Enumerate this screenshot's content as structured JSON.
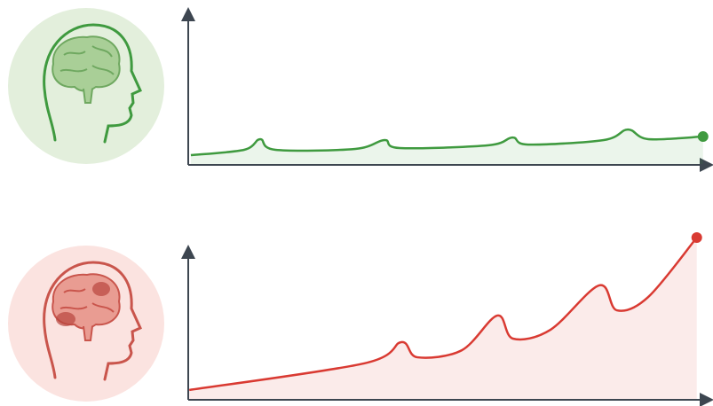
{
  "chart_data": [
    {
      "type": "line",
      "x": [
        0.5,
        10.7,
        13.8,
        16.7,
        32,
        37.6,
        40.5,
        57.5,
        62.1,
        65.1,
        79.6,
        84.2,
        88.1,
        98.6
      ],
      "series": [
        {
          "color": "#3f9a3f",
          "values": [
            5.9,
            9.4,
            16.5,
            9.4,
            10,
            15.9,
            10.6,
            12.4,
            17.6,
            12.9,
            15.9,
            22.9,
            16.5,
            18.2
          ]
        }
      ],
      "xlim": [
        0,
        100
      ],
      "ylim": [
        0,
        100
      ]
    },
    {
      "type": "line",
      "x": [
        0.2,
        33.7,
        40.8,
        43.9,
        52.4,
        59.2,
        62.2,
        69.4,
        78.7,
        82.1,
        88.1,
        97.4
      ],
      "series": [
        {
          "color": "#d93a32",
          "values": [
            5.3,
            21.1,
            33.7,
            24.7,
            28.9,
            49.5,
            35.8,
            41.1,
            67.4,
            52.6,
            60.5,
            95.8
          ]
        }
      ],
      "xlim": [
        0,
        100
      ],
      "ylim": [
        0,
        100
      ]
    }
  ]
}
